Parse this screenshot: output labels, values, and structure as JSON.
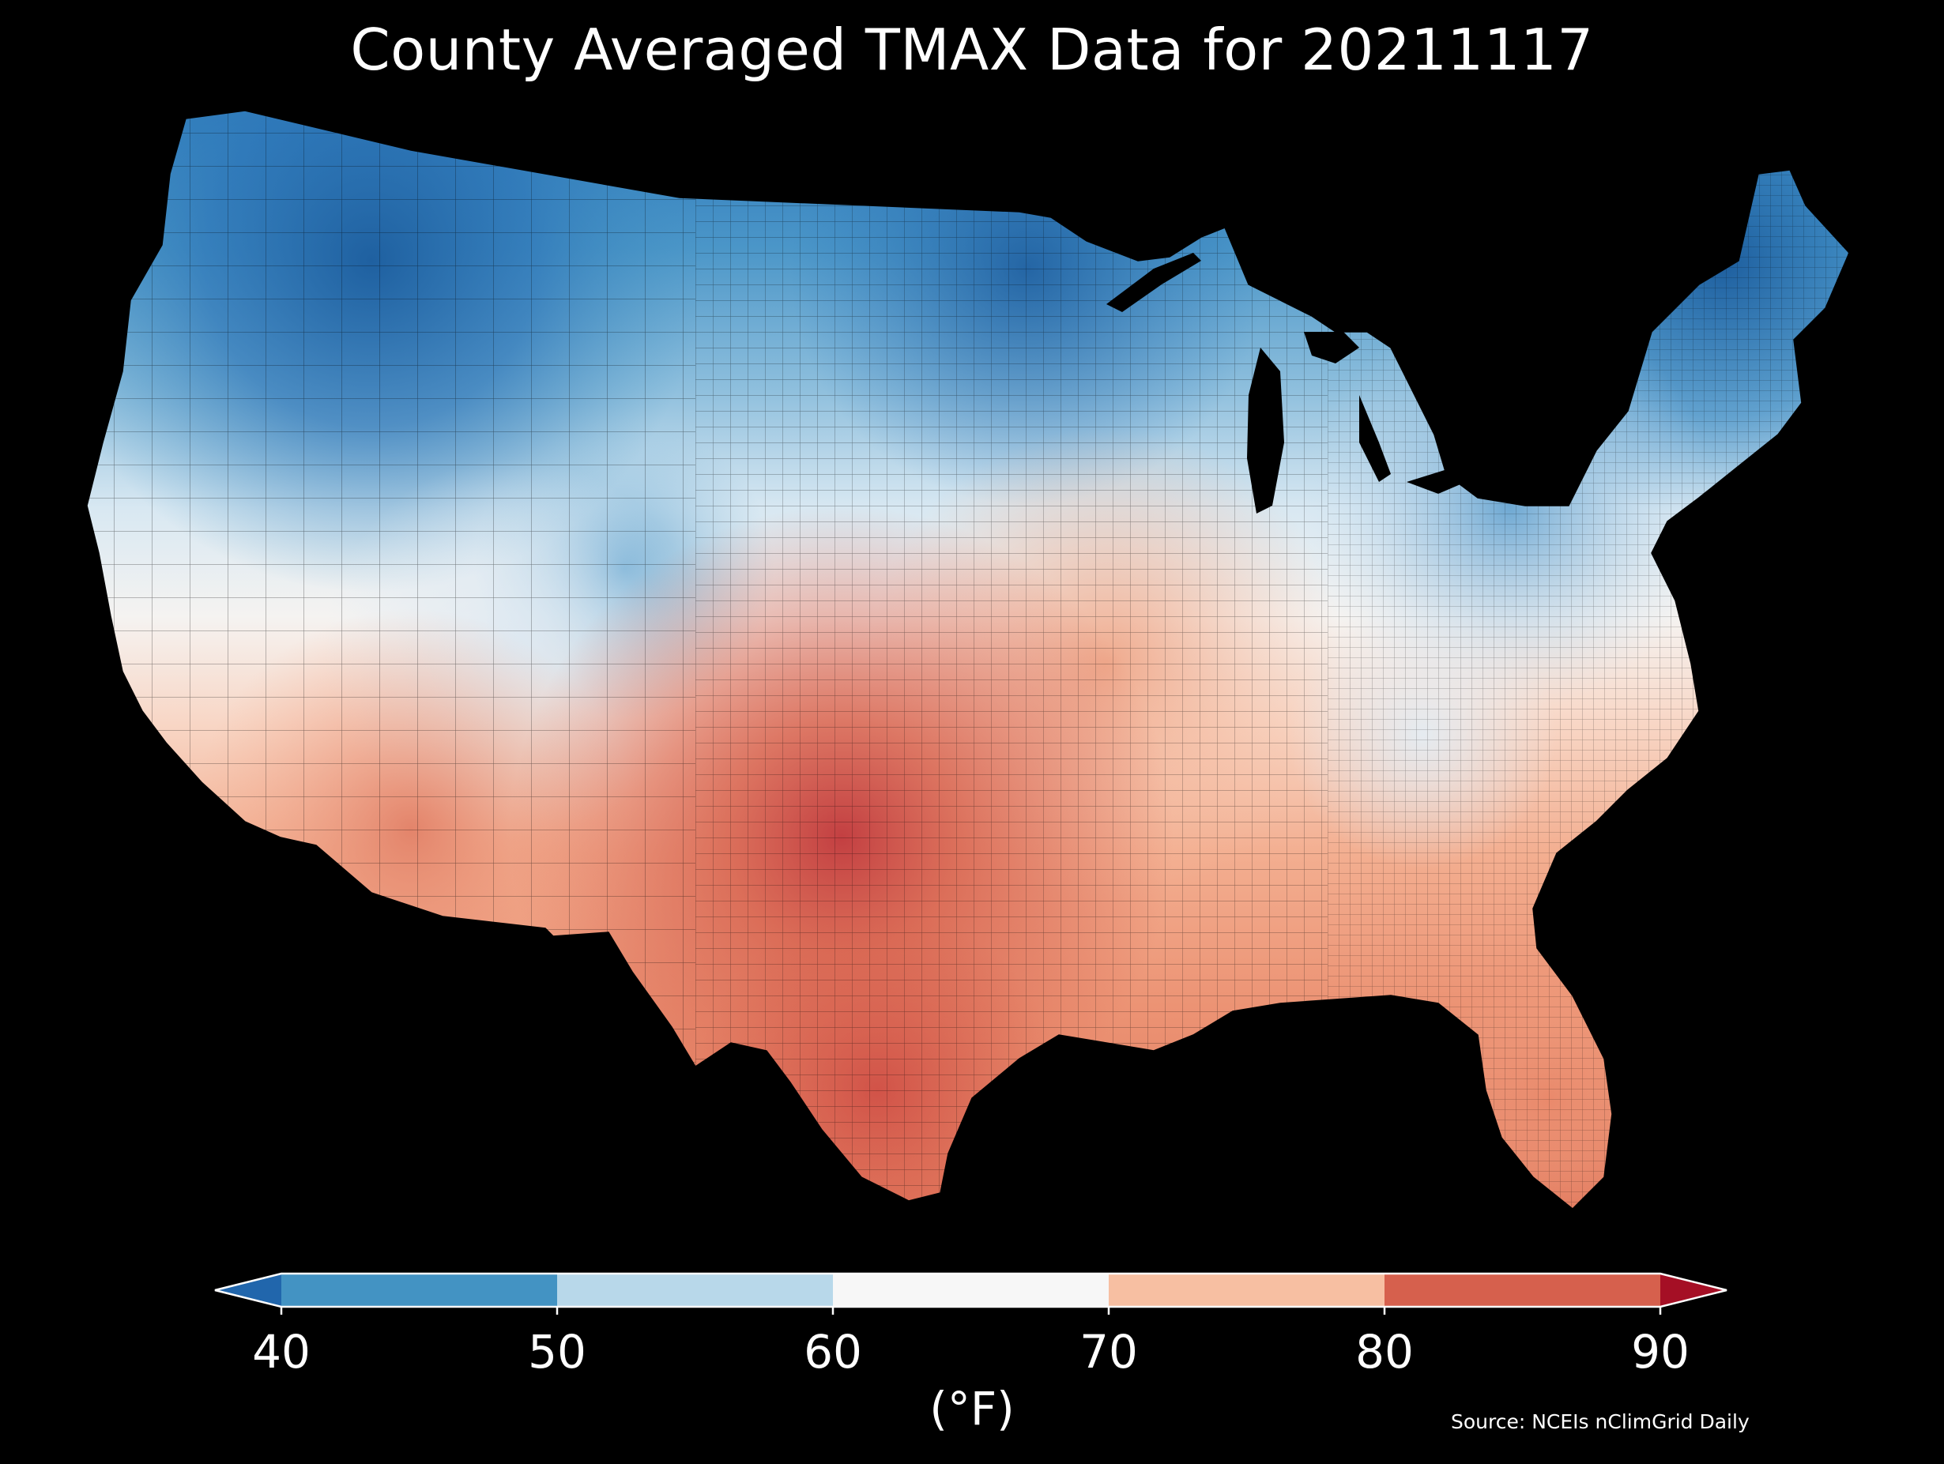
{
  "title": "County Averaged TMAX Data for 20211117",
  "source": "Source: NCEIs nClimGrid Daily",
  "colorbar": {
    "unit_label": "(°F)",
    "ticks": [
      "40",
      "50",
      "60",
      "70",
      "80",
      "90"
    ],
    "tick_values": [
      40,
      50,
      60,
      70,
      80,
      90
    ],
    "extend": "both",
    "bins": [
      {
        "from": null,
        "to": 40,
        "color": "#2166ac"
      },
      {
        "from": 40,
        "to": 50,
        "color": "#4393c3"
      },
      {
        "from": 50,
        "to": 60,
        "color": "#b8d8ea"
      },
      {
        "from": 60,
        "to": 70,
        "color": "#f7f7f7"
      },
      {
        "from": 70,
        "to": 80,
        "color": "#f7bfa2"
      },
      {
        "from": 80,
        "to": 90,
        "color": "#d6604d"
      },
      {
        "from": 90,
        "to": null,
        "color": "#a50f25"
      }
    ]
  },
  "map": {
    "region": "Contiguous United States",
    "background_color": "#000000",
    "temperature_pattern": [
      {
        "area": "Pacific Northwest and northern Rockies",
        "approx_tmax_f": 42
      },
      {
        "area": "Upper Midwest and northern Great Lakes",
        "approx_tmax_f": 45
      },
      {
        "area": "New England and New York",
        "approx_tmax_f": 44
      },
      {
        "area": "Northern California coast",
        "approx_tmax_f": 62
      },
      {
        "area": "Great Basin",
        "approx_tmax_f": 58
      },
      {
        "area": "Central Plains (Kansas, Nebraska)",
        "approx_tmax_f": 71
      },
      {
        "area": "Southern Plains (Oklahoma, north Texas)",
        "approx_tmax_f": 84
      },
      {
        "area": "South Texas",
        "approx_tmax_f": 83
      },
      {
        "area": "Desert Southwest",
        "approx_tmax_f": 77
      },
      {
        "area": "Southeast and Gulf Coast",
        "approx_tmax_f": 72
      },
      {
        "area": "Florida",
        "approx_tmax_f": 77
      },
      {
        "area": "Ohio Valley and Mid-Atlantic",
        "approx_tmax_f": 60
      }
    ]
  }
}
